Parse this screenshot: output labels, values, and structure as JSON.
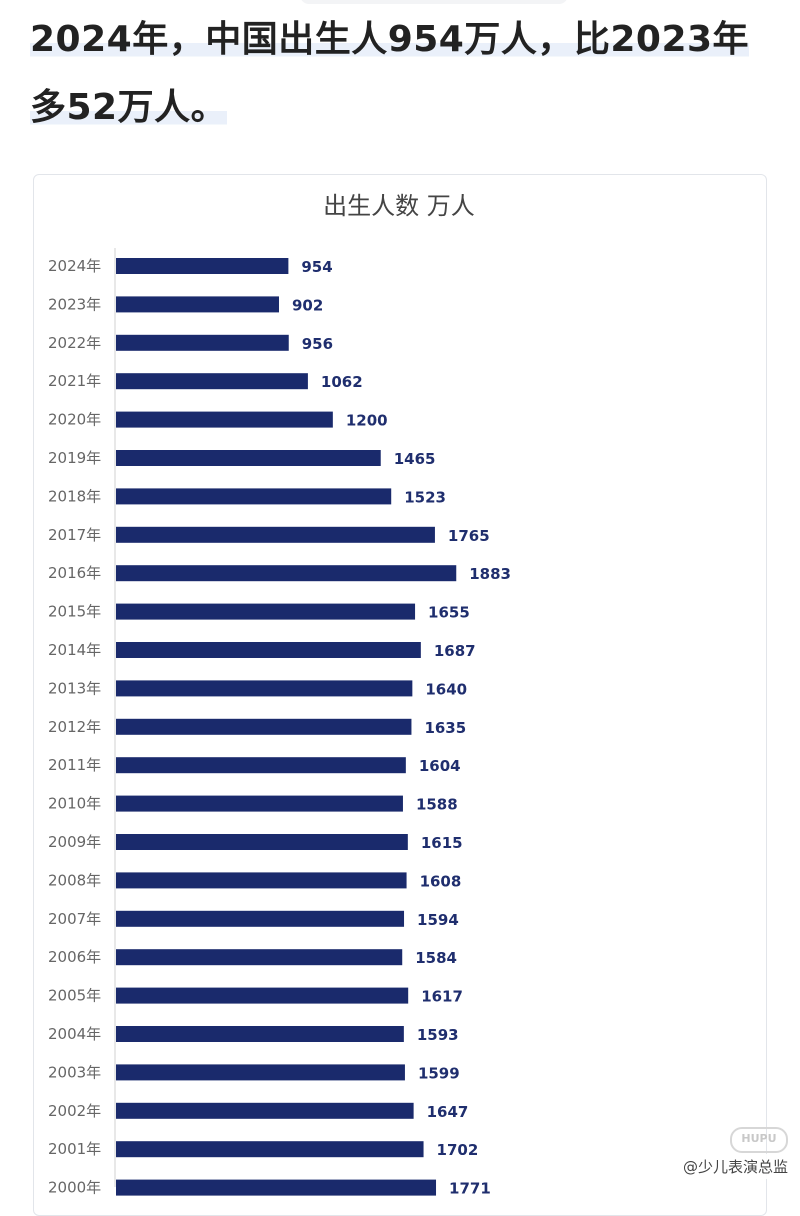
{
  "headline": "2024年，中国出生人954万人，比2023年多52万人。",
  "watermark": "@少儿表演总监",
  "watermark_logo": "HUPU",
  "chart_data": {
    "type": "bar",
    "orientation": "horizontal",
    "title": "出生人数 万人",
    "bar_color": "#1a2a6c",
    "value_label_color": "#1f2e6e",
    "categories": [
      "2024年",
      "2023年",
      "2022年",
      "2021年",
      "2020年",
      "2019年",
      "2018年",
      "2017年",
      "2016年",
      "2015年",
      "2014年",
      "2013年",
      "2012年",
      "2011年",
      "2010年",
      "2009年",
      "2008年",
      "2007年",
      "2006年",
      "2005年",
      "2004年",
      "2003年",
      "2002年",
      "2001年",
      "2000年"
    ],
    "values": [
      954,
      902,
      956,
      1062,
      1200,
      1465,
      1523,
      1765,
      1883,
      1655,
      1687,
      1640,
      1635,
      1604,
      1588,
      1615,
      1608,
      1594,
      1584,
      1617,
      1593,
      1599,
      1647,
      1702,
      1771
    ],
    "grid": false,
    "legend": "none"
  }
}
